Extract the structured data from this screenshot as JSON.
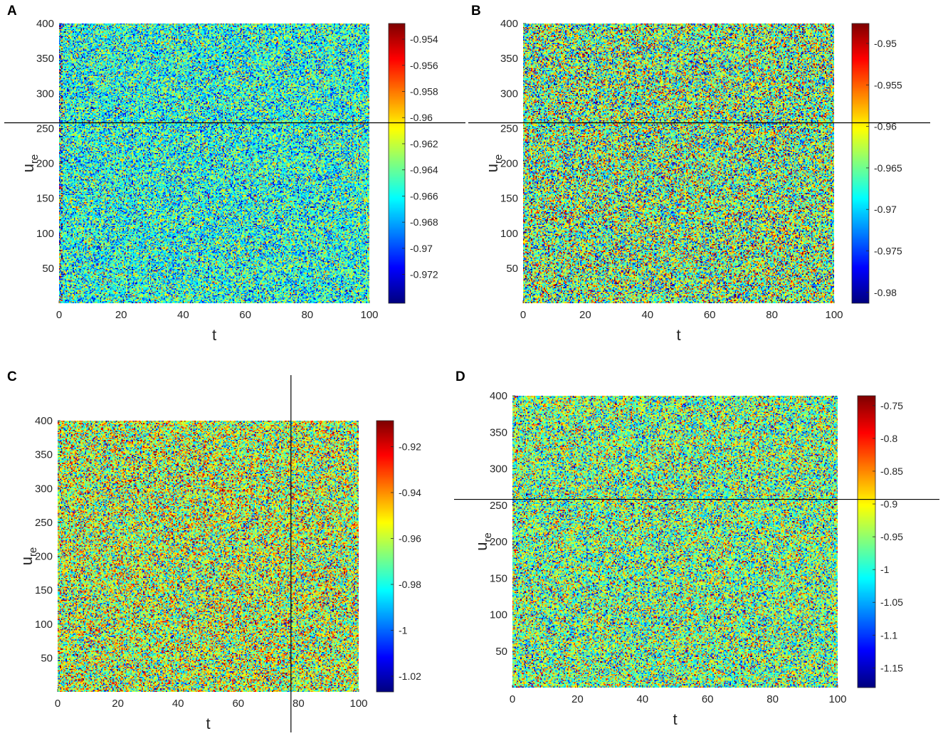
{
  "chart_data": [
    {
      "id": "A",
      "panel_label": "A",
      "type": "heatmap",
      "xlabel": "t",
      "ylabel_main": "u",
      "ylabel_sub": "re",
      "xlim": [
        0,
        100
      ],
      "ylim": [
        0,
        400
      ],
      "xticks": [
        0,
        20,
        40,
        60,
        80,
        100
      ],
      "yticks": [
        50,
        100,
        150,
        200,
        250,
        300,
        350,
        400
      ],
      "colorbar": {
        "min": -0.9742,
        "max": -0.9528,
        "ticks": [
          "-0.954",
          "-0.956",
          "-0.958",
          "-0.96",
          "-0.962",
          "-0.964",
          "-0.966",
          "-0.968",
          "-0.97",
          "-0.972"
        ],
        "tick_values": [
          -0.954,
          -0.956,
          -0.958,
          -0.96,
          -0.962,
          -0.964,
          -0.966,
          -0.968,
          -0.97,
          -0.972
        ]
      },
      "field_mean": -0.9655,
      "field_spread": 0.0035,
      "crosshair": {
        "orientation": "horizontal",
        "value": 258
      }
    },
    {
      "id": "B",
      "panel_label": "B",
      "type": "heatmap",
      "xlabel": "t",
      "ylabel_main": "u",
      "ylabel_sub": "re",
      "xlim": [
        0,
        100
      ],
      "ylim": [
        0,
        400
      ],
      "xticks": [
        0,
        20,
        40,
        60,
        80,
        100
      ],
      "yticks": [
        50,
        100,
        150,
        200,
        250,
        300,
        350,
        400
      ],
      "colorbar": {
        "min": -0.9813,
        "max": -0.9476,
        "ticks": [
          "-0.95",
          "-0.955",
          "-0.96",
          "-0.965",
          "-0.97",
          "-0.975",
          "-0.98"
        ],
        "tick_values": [
          -0.95,
          -0.955,
          -0.96,
          -0.965,
          -0.97,
          -0.975,
          -0.98
        ]
      },
      "field_mean": -0.9645,
      "field_spread": 0.0075,
      "crosshair": {
        "orientation": "horizontal",
        "value": 258
      }
    },
    {
      "id": "C",
      "panel_label": "C",
      "type": "heatmap",
      "xlabel": "t",
      "ylabel_main": "u",
      "ylabel_sub": "re",
      "xlim": [
        0,
        100
      ],
      "ylim": [
        0,
        400
      ],
      "xticks": [
        0,
        20,
        40,
        60,
        80,
        100
      ],
      "yticks": [
        50,
        100,
        150,
        200,
        250,
        300,
        350,
        400
      ],
      "colorbar": {
        "min": -1.0268,
        "max": -0.9087,
        "ticks": [
          "-0.92",
          "-0.94",
          "-0.96",
          "-0.98",
          "-1",
          "-1.02"
        ],
        "tick_values": [
          -0.92,
          -0.94,
          -0.96,
          -0.98,
          -1,
          -1.02
        ]
      },
      "field_mean": -0.962,
      "field_spread": 0.024,
      "crosshair": {
        "orientation": "vertical",
        "value": 77.5
      }
    },
    {
      "id": "D",
      "panel_label": "D",
      "type": "heatmap",
      "xlabel": "t",
      "ylabel_main": "u",
      "ylabel_sub": "re",
      "xlim": [
        0,
        100
      ],
      "ylim": [
        0,
        400
      ],
      "xticks": [
        0,
        20,
        40,
        60,
        80,
        100
      ],
      "yticks": [
        50,
        100,
        150,
        200,
        250,
        300,
        350,
        400
      ],
      "colorbar": {
        "min": -1.18,
        "max": -0.735,
        "ticks": [
          "-0.75",
          "-0.8",
          "-0.85",
          "-0.9",
          "-0.95",
          "-1",
          "-1.05",
          "-1.1",
          "-1.15"
        ],
        "tick_values": [
          -0.75,
          -0.8,
          -0.85,
          -0.9,
          -0.95,
          -1,
          -1.05,
          -1.1,
          -1.15
        ]
      },
      "field_mean": -0.96,
      "field_spread": 0.085,
      "crosshair": {
        "orientation": "horizontal",
        "value": 258
      }
    }
  ]
}
